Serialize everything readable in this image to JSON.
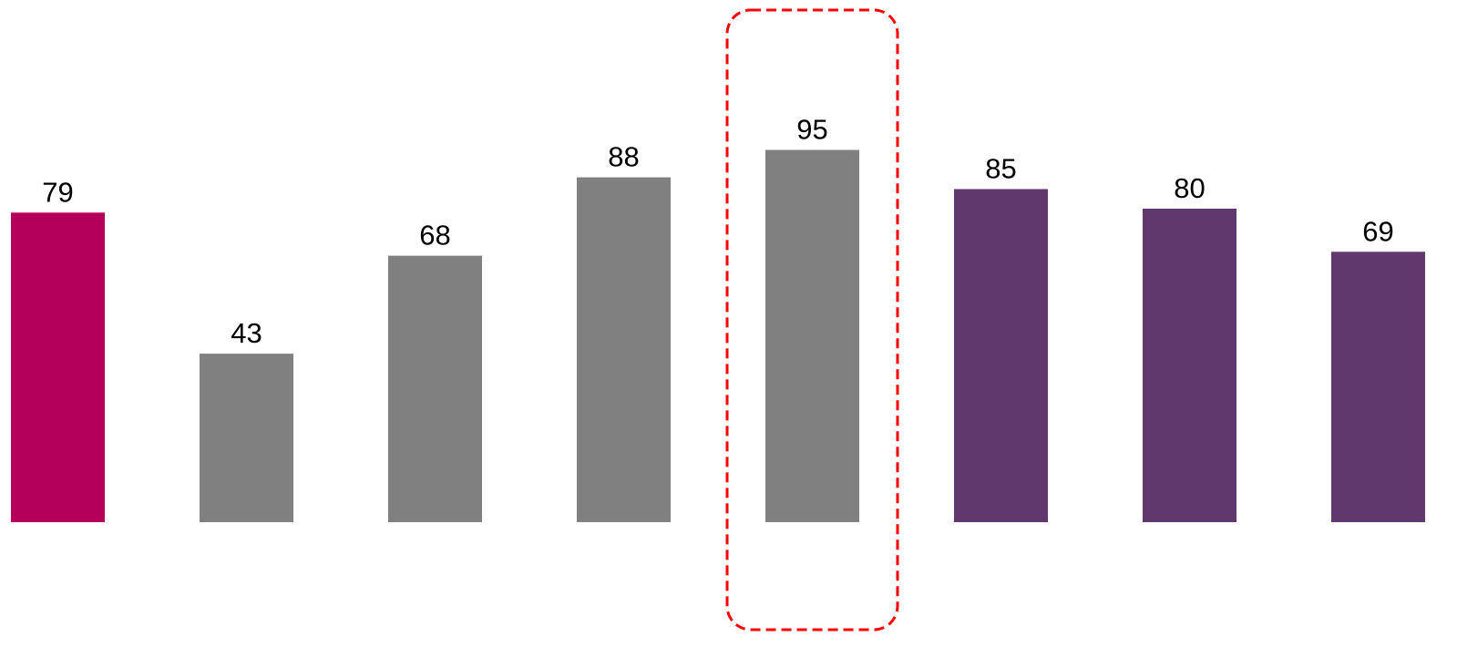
{
  "chart_data": {
    "type": "bar",
    "categories": [
      "",
      "",
      "",
      "",
      "",
      "",
      "",
      ""
    ],
    "values": [
      79,
      43,
      68,
      88,
      95,
      85,
      80,
      69
    ],
    "bar_colors": [
      "#B5005B",
      "#808080",
      "#808080",
      "#808080",
      "#808080",
      "#61386E",
      "#61386E",
      "#61386E"
    ],
    "data_labels": [
      "79",
      "43",
      "68",
      "88",
      "95",
      "85",
      "80",
      "69"
    ],
    "highlighted_index": 4,
    "highlight_style": "red dashed rounded rectangle",
    "highlight_color": "#FF0000",
    "title": "",
    "xlabel": "",
    "ylabel": "",
    "ylim": [
      0,
      100
    ],
    "axes_visible": false,
    "grid": false,
    "legend": "none"
  }
}
